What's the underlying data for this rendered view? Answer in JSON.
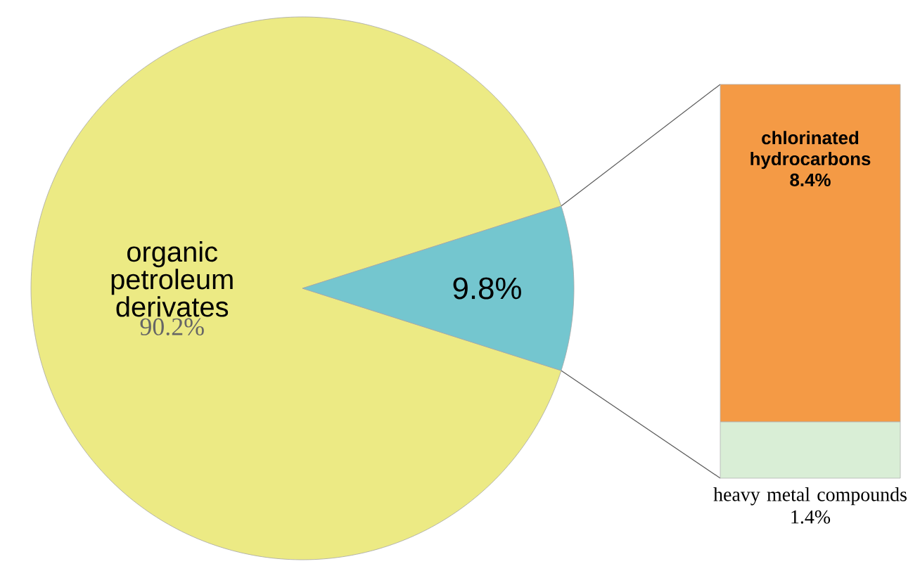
{
  "chart_data": [
    {
      "type": "pie",
      "categories": [
        "organic petroleum derivates",
        null
      ],
      "values": [
        90.2,
        9.8
      ],
      "colors": [
        "#ecea84",
        "#74c6cf"
      ],
      "value_labels": [
        "90.2%",
        "9.8%"
      ]
    },
    {
      "type": "bar",
      "stacked": true,
      "categories": [
        null
      ],
      "series": [
        {
          "name": "heavy metal compounds",
          "color": "#d9eed6",
          "values": [
            1.4
          ],
          "value_labels": [
            "1.4%"
          ]
        },
        {
          "name": "chlorinated hydrocarbons",
          "color": "#f49a45",
          "values": [
            8.4
          ],
          "value_labels": [
            "8.4%"
          ]
        }
      ]
    }
  ]
}
